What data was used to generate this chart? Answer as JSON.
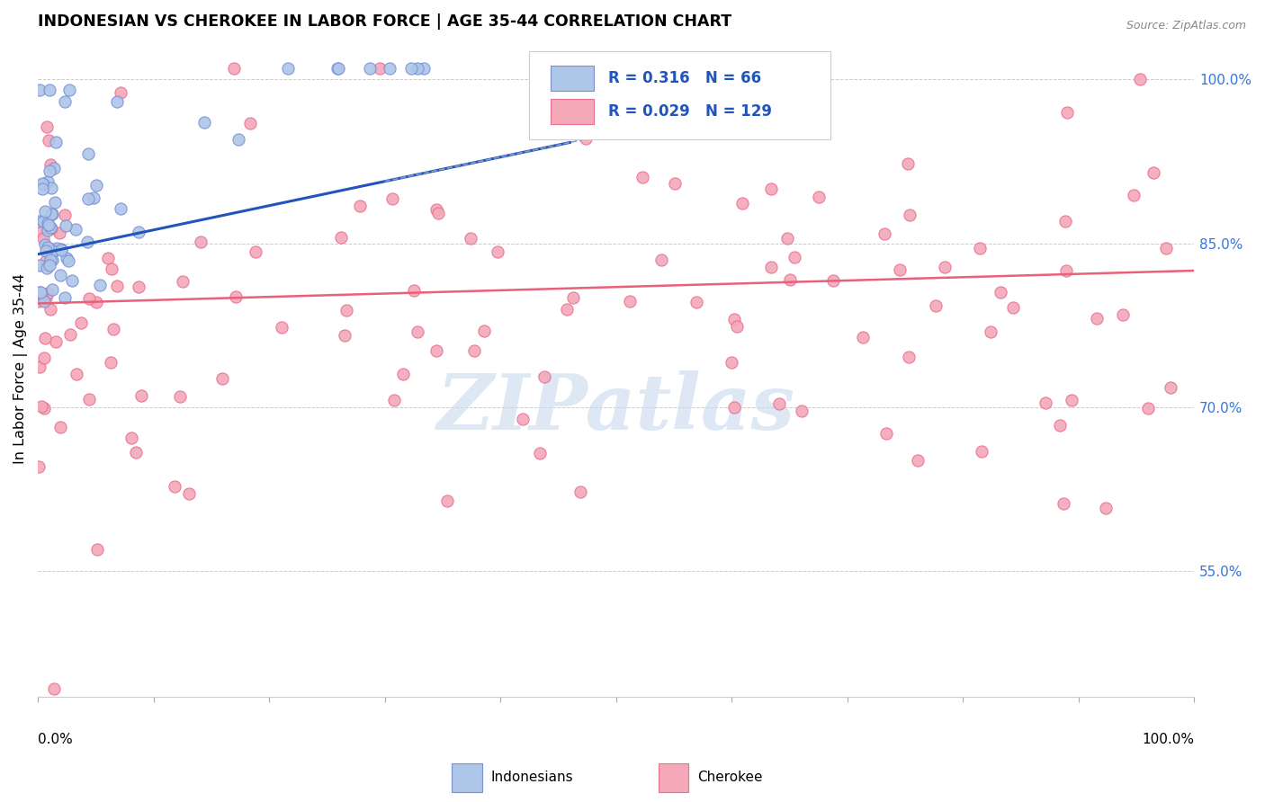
{
  "title": "INDONESIAN VS CHEROKEE IN LABOR FORCE | AGE 35-44 CORRELATION CHART",
  "source": "Source: ZipAtlas.com",
  "ylabel": "In Labor Force | Age 35-44",
  "ytick_labels": [
    "55.0%",
    "70.0%",
    "85.0%",
    "100.0%"
  ],
  "ytick_values": [
    0.55,
    0.7,
    0.85,
    1.0
  ],
  "xlim": [
    0.0,
    1.0
  ],
  "ylim": [
    0.435,
    1.035
  ],
  "indonesian_R": "0.316",
  "indonesian_N": "66",
  "cherokee_R": "0.029",
  "cherokee_N": "129",
  "indonesian_color_edge": "#7a8fd4",
  "indonesian_color_fill": "#aec6e8",
  "cherokee_color_edge": "#e87090",
  "cherokee_color_fill": "#f4a8b8",
  "trend_indonesian_color": "#2255bb",
  "trend_cherokee_color": "#e8607a",
  "trend_dashed_color": "#8899cc",
  "legend_R_N_color": "#2255bb",
  "watermark_color": "#c8d8ee",
  "watermark_text": "ZIPatlas"
}
